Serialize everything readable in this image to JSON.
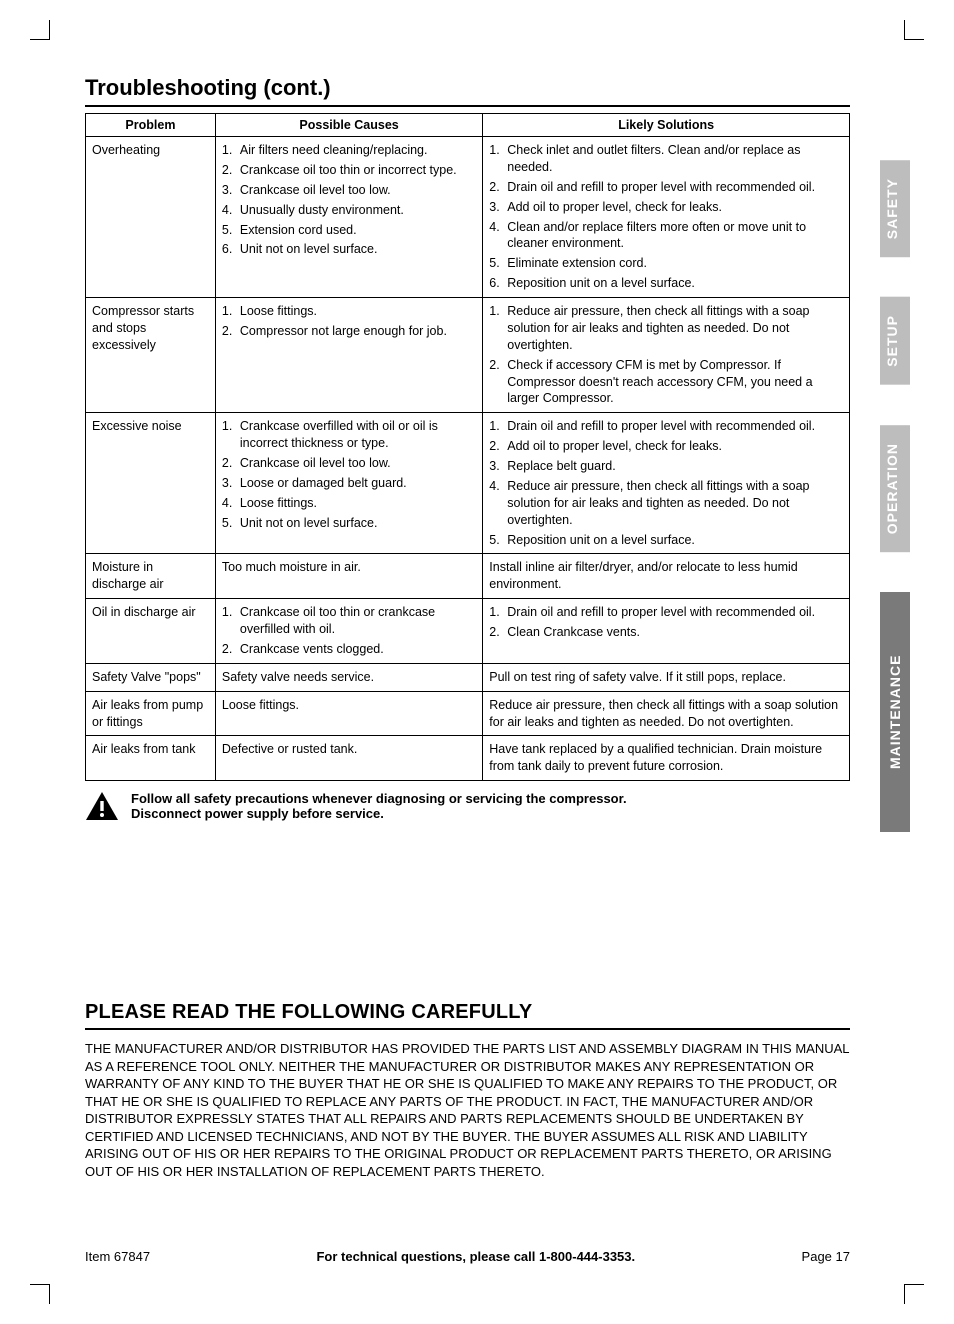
{
  "title": "Troubleshooting (cont.)",
  "table": {
    "headers": [
      "Problem",
      "Possible Causes",
      "Likely Solutions"
    ],
    "rows": [
      {
        "problem": "Overheating",
        "causes": [
          "Air filters need cleaning/replacing.",
          "Crankcase oil too thin or incorrect type.",
          "Crankcase oil level too low.",
          "Unusually dusty environment.",
          "Extension cord used.",
          "Unit not on level surface."
        ],
        "solutions": [
          "Check inlet and outlet filters. Clean and/or replace as needed.",
          "Drain oil and refill to proper level with recommended oil.",
          "Add oil to proper level, check for leaks.",
          "Clean and/or replace filters more often or move unit to cleaner environment.",
          "Eliminate extension cord.",
          "Reposition unit on a level surface."
        ]
      },
      {
        "problem": "Compressor starts and stops excessively",
        "causes": [
          "Loose fittings.",
          "Compressor not large enough for job."
        ],
        "solutions": [
          "Reduce air pressure, then check all fittings with a soap solution for air leaks and tighten as needed. Do not overtighten.",
          "Check if accessory CFM is met by Compressor. If Compressor doesn't reach accessory CFM, you need a larger Compressor."
        ]
      },
      {
        "problem": "Excessive noise",
        "causes": [
          "Crankcase overfilled with oil or oil is incorrect thickness or type.",
          "Crankcase oil level too low.",
          "Loose or damaged belt guard.",
          "Loose fittings.",
          "Unit not on level surface."
        ],
        "solutions": [
          "Drain oil and refill to proper level with recommended oil.",
          "Add oil to proper level, check for leaks.",
          "Replace belt guard.",
          "Reduce air pressure, then check all fittings with a soap solution for air leaks and tighten as needed. Do not overtighten.",
          "Reposition unit on a level surface."
        ]
      },
      {
        "problem": "Moisture in discharge air",
        "causes_plain": "Too much moisture in air.",
        "solutions_plain": "Install inline air filter/dryer, and/or relocate to less humid environment."
      },
      {
        "problem": "Oil in discharge air",
        "causes": [
          "Crankcase oil too thin or crankcase overfilled with oil.",
          "Crankcase vents clogged."
        ],
        "solutions": [
          "Drain oil and refill to proper level with recommended oil.",
          "Clean Crankcase vents."
        ]
      },
      {
        "problem": "Safety Valve \"pops\"",
        "causes_plain": "Safety valve needs service.",
        "solutions_plain": "Pull on test ring of safety valve.  If it still pops, replace."
      },
      {
        "problem": "Air leaks from pump or fittings",
        "causes_plain": "Loose fittings.",
        "solutions_plain": "Reduce air pressure, then check all fittings with a soap solution for air leaks and tighten as needed. Do not overtighten."
      },
      {
        "problem": "Air leaks from tank",
        "causes_plain": "Defective or rusted tank.",
        "solutions_plain": "Have tank replaced by a qualified technician. Drain moisture from tank daily to prevent future corrosion."
      }
    ]
  },
  "warning": {
    "line1": "Follow all safety precautions whenever diagnosing or servicing the compressor.",
    "line2": "Disconnect power supply before service."
  },
  "read_title": "PLEASE READ THE FOLLOWING CAREFULLY",
  "disclaimer": "THE MANUFACTURER AND/OR DISTRIBUTOR HAS PROVIDED THE PARTS LIST AND ASSEMBLY DIAGRAM IN THIS MANUAL AS A REFERENCE TOOL ONLY.  NEITHER THE MANUFACTURER OR DISTRIBUTOR MAKES ANY REPRESENTATION OR WARRANTY OF ANY KIND TO THE BUYER THAT HE OR SHE IS QUALIFIED TO MAKE ANY REPAIRS TO THE PRODUCT, OR THAT HE OR SHE IS QUALIFIED TO REPLACE ANY PARTS OF THE PRODUCT.  IN FACT, THE MANUFACTURER AND/OR DISTRIBUTOR EXPRESSLY STATES THAT ALL REPAIRS AND PARTS REPLACEMENTS SHOULD BE UNDERTAKEN BY CERTIFIED AND LICENSED TECHNICIANS, AND NOT BY THE BUYER.  THE BUYER ASSUMES ALL RISK AND LIABILITY ARISING OUT OF HIS OR HER REPAIRS TO THE ORIGINAL PRODUCT OR REPLACEMENT PARTS THERETO, OR ARISING OUT OF HIS OR HER INSTALLATION OF REPLACEMENT PARTS THERETO.",
  "tabs": {
    "safety": "SAFETY",
    "setup": "SETUP",
    "operation": "OPERATION",
    "maintenance": "MAINTENANCE"
  },
  "footer": {
    "left": "Item 67847",
    "mid": "For technical questions, please call 1-800-444-3353.",
    "right": "Page 17"
  },
  "colors": {
    "tab_inactive": "#bdbdbd",
    "tab_active": "#7a7a7a",
    "text": "#000000"
  }
}
